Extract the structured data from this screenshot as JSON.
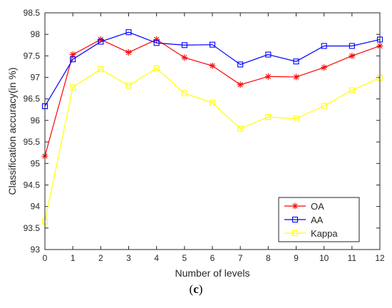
{
  "caption": {
    "open": "(",
    "letter": "c",
    "close": ")"
  },
  "chart_data": {
    "type": "line",
    "title": "",
    "xlabel": "Number of levels",
    "ylabel": "Classification accuracy(in %)",
    "x": [
      0,
      1,
      2,
      3,
      4,
      5,
      6,
      7,
      8,
      9,
      10,
      11,
      12
    ],
    "xlim": [
      0,
      12
    ],
    "ylim": [
      93,
      98.5
    ],
    "xticks": [
      0,
      1,
      2,
      3,
      4,
      5,
      6,
      7,
      8,
      9,
      10,
      11,
      12
    ],
    "yticks": [
      93,
      93.5,
      94,
      94.5,
      95,
      95.5,
      96,
      96.5,
      97,
      97.5,
      98,
      98.5
    ],
    "grid": false,
    "legend_position": "bottom-right",
    "series": [
      {
        "name": "OA",
        "color": "#ff0000",
        "marker": "asterisk",
        "values": [
          95.17,
          97.53,
          97.88,
          97.58,
          97.88,
          97.46,
          97.27,
          96.83,
          97.02,
          97.01,
          97.23,
          97.5,
          97.73
        ]
      },
      {
        "name": "AA",
        "color": "#0000ff",
        "marker": "square",
        "values": [
          96.33,
          97.42,
          97.83,
          98.05,
          97.8,
          97.75,
          97.76,
          97.3,
          97.53,
          97.37,
          97.73,
          97.73,
          97.88
        ]
      },
      {
        "name": "Kappa",
        "color": "#ffff00",
        "marker": "square",
        "values": [
          93.65,
          96.77,
          97.19,
          96.81,
          97.21,
          96.63,
          96.41,
          95.81,
          96.08,
          96.04,
          96.34,
          96.7,
          96.99
        ]
      }
    ]
  }
}
